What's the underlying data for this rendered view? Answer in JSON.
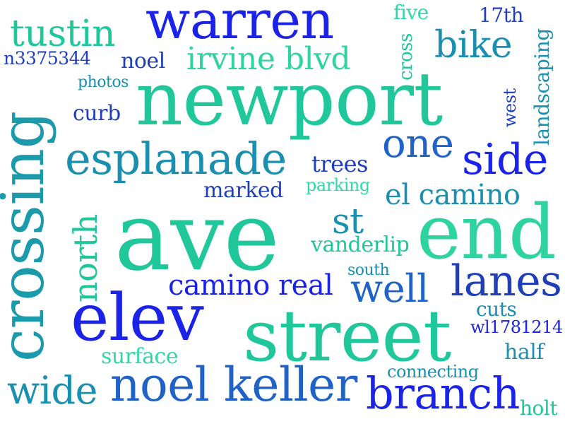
{
  "palette": {
    "blue": "#1a23e6",
    "navy": "#1f3fb8",
    "teal": "#1b8fb0",
    "green": "#20c79a",
    "mint": "#2fd39f"
  },
  "words": {
    "warren": "warren",
    "tustin": "tustin",
    "five": "five",
    "seventeenth": "17th",
    "bike": "bike",
    "landscaping": "landscaping",
    "n3375344": "n3375344",
    "noel": "noel",
    "irvine_blvd": "irvine blvd",
    "cross": "cross",
    "photos": "photos",
    "newport": "newport",
    "west": "west",
    "curb": "curb",
    "crossing": "crossing",
    "esplanade": "esplanade",
    "one": "one",
    "side": "side",
    "trees": "trees",
    "marked": "marked",
    "parking": "parking",
    "el_camino": "el camino",
    "north": "north",
    "ave": "ave",
    "st": "st",
    "end": "end",
    "vanderlip": "vanderlip",
    "south": "south",
    "camino_real": "camino real",
    "well": "well",
    "lanes": "lanes",
    "elev": "elev",
    "street": "street",
    "cuts": "cuts",
    "wl1781214": "wl1781214",
    "surface": "surface",
    "half": "half",
    "connecting": "connecting",
    "wide": "wide",
    "noel_keller": "noel keller",
    "branch": "branch",
    "holt": "holt"
  }
}
